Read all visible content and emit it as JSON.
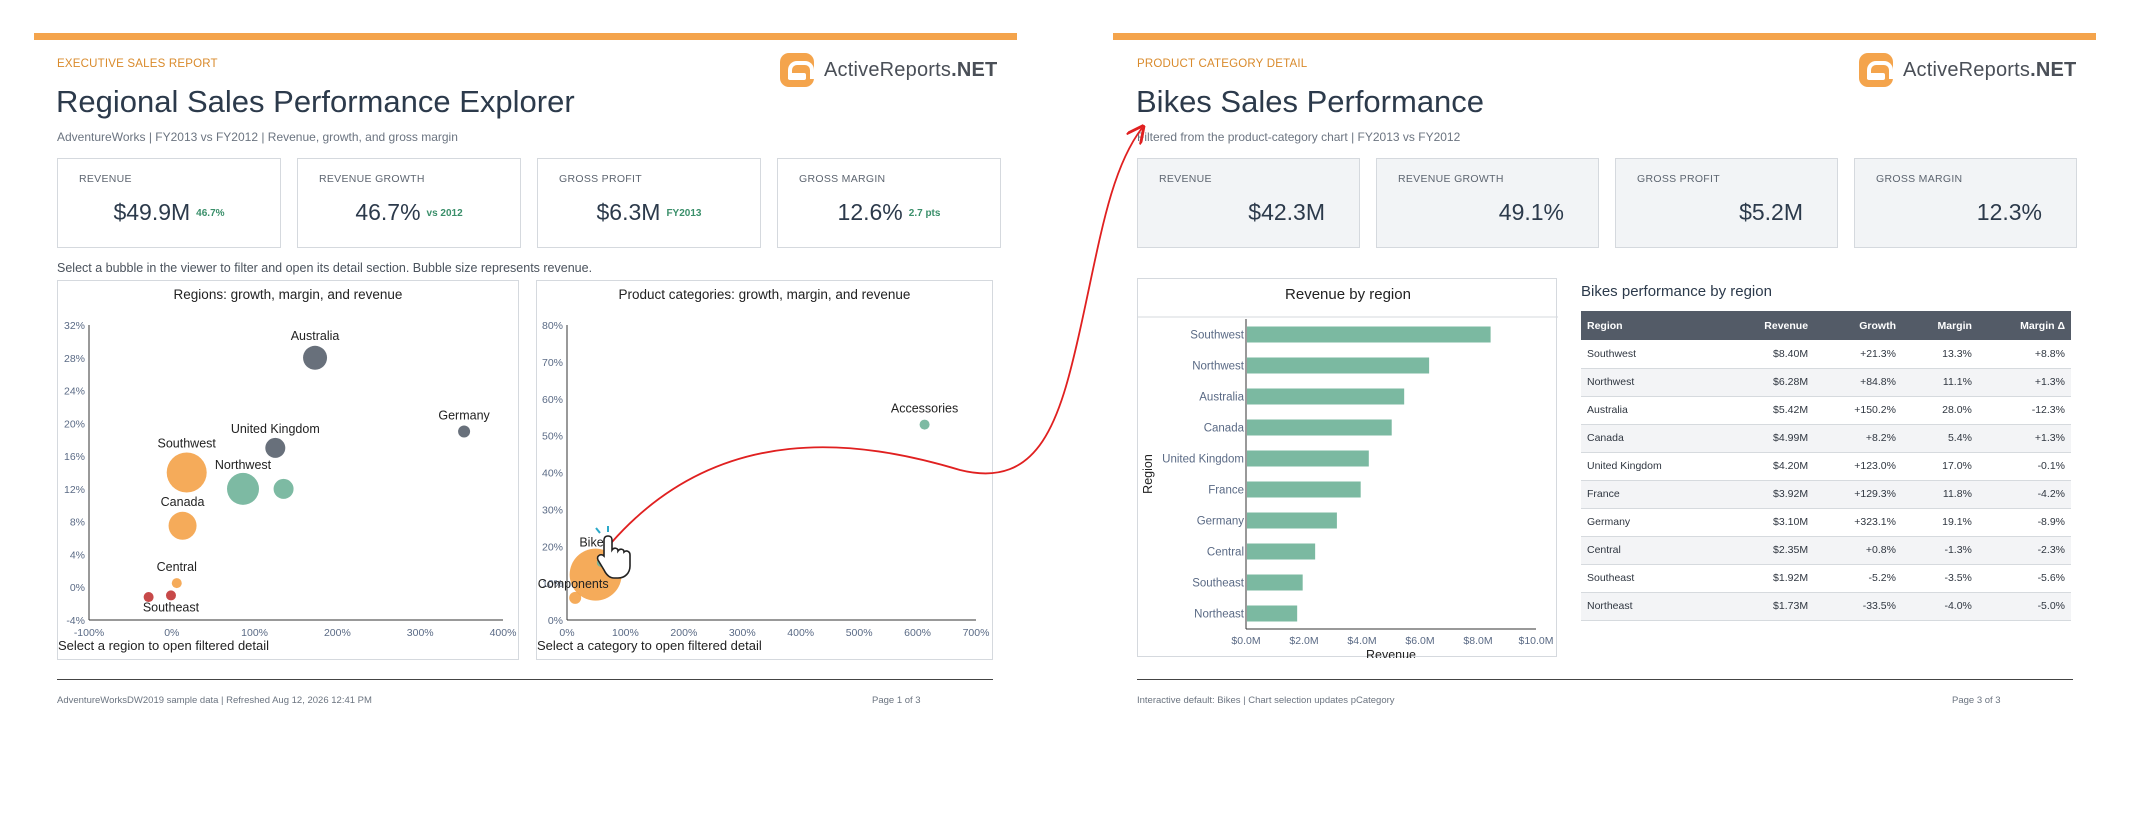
{
  "page1": {
    "kicker": "EXECUTIVE SALES REPORT",
    "title": "Regional Sales Performance Explorer",
    "subtitle": "AdventureWorks | FY2013 vs FY2012 | Revenue, growth, and gross margin",
    "logo": {
      "brand": "ActiveReports",
      "suffix": ".NET",
      "color": "#f4a44c"
    },
    "kpis": [
      {
        "label": "REVENUE",
        "value": "$49.9M",
        "delta": "46.7%"
      },
      {
        "label": "REVENUE GROWTH",
        "value": "46.7%",
        "delta": "vs 2012"
      },
      {
        "label": "GROSS PROFIT",
        "value": "$6.3M",
        "delta": "FY2013"
      },
      {
        "label": "GROSS MARGIN",
        "value": "12.6%",
        "delta": "2.7 pts"
      }
    ],
    "hint": "Select a bubble in the viewer to filter and open its detail section. Bubble size represents revenue.",
    "footer_left": "AdventureWorksDW2019 sample data | Refreshed Aug 12, 2026 12:41 PM",
    "footer_right": "Page 1 of 3"
  },
  "page3": {
    "kicker": "PRODUCT CATEGORY DETAIL",
    "title": "Bikes Sales Performance",
    "subtitle": "Filtered from the product-category chart | FY2013 vs FY2012",
    "kpis": [
      {
        "label": "REVENUE",
        "value": "$42.3M"
      },
      {
        "label": "REVENUE GROWTH",
        "value": "49.1%"
      },
      {
        "label": "GROSS PROFIT",
        "value": "$5.2M"
      },
      {
        "label": "GROSS MARGIN",
        "value": "12.3%"
      }
    ],
    "table": {
      "title": "Bikes performance by region",
      "columns": [
        "Region",
        "Revenue",
        "Growth",
        "Margin",
        "Margin Δ"
      ],
      "rows": [
        [
          "Southwest",
          "$8.40M",
          "+21.3%",
          "13.3%",
          "+8.8%"
        ],
        [
          "Northwest",
          "$6.28M",
          "+84.8%",
          "11.1%",
          "+1.3%"
        ],
        [
          "Australia",
          "$5.42M",
          "+150.2%",
          "28.0%",
          "-12.3%"
        ],
        [
          "Canada",
          "$4.99M",
          "+8.2%",
          "5.4%",
          "+1.3%"
        ],
        [
          "United Kingdom",
          "$4.20M",
          "+123.0%",
          "17.0%",
          "-0.1%"
        ],
        [
          "France",
          "$3.92M",
          "+129.3%",
          "11.8%",
          "-4.2%"
        ],
        [
          "Germany",
          "$3.10M",
          "+323.1%",
          "19.1%",
          "-8.9%"
        ],
        [
          "Central",
          "$2.35M",
          "+0.8%",
          "-1.3%",
          "-2.3%"
        ],
        [
          "Southeast",
          "$1.92M",
          "-5.2%",
          "-3.5%",
          "-5.6%"
        ],
        [
          "Northeast",
          "$1.73M",
          "-33.5%",
          "-4.0%",
          "-5.0%"
        ]
      ]
    },
    "footer_left": "Interactive default: Bikes | Chart selection updates pCategory",
    "footer_right": "Page 3 of 3"
  },
  "chart_data": [
    {
      "type": "scatter",
      "title": "Regions: growth, margin, and revenue",
      "caption": "Select a region to open filtered detail",
      "xlim": [
        -100,
        400
      ],
      "ylim": [
        -4,
        32
      ],
      "xticks": [
        "-100%",
        "0%",
        "100%",
        "200%",
        "300%",
        "400%"
      ],
      "yticks": [
        "-4%",
        "0%",
        "4%",
        "8%",
        "12%",
        "16%",
        "20%",
        "24%",
        "28%",
        "32%"
      ],
      "points": [
        {
          "label": "Australia",
          "x": 173,
          "y": 28,
          "size": 6,
          "color": "#5b6470"
        },
        {
          "label": "Germany",
          "x": 353,
          "y": 19,
          "size": 3,
          "color": "#5b6470"
        },
        {
          "label": "United Kingdom",
          "x": 125,
          "y": 17,
          "size": 5,
          "color": "#5b6470"
        },
        {
          "label": "Southwest",
          "x": 18,
          "y": 14,
          "size": 10,
          "color": "#f4a44c"
        },
        {
          "label": "Northwest",
          "x": 86,
          "y": 12,
          "size": 8,
          "color": "#72b49b"
        },
        {
          "label": "",
          "x": 135,
          "y": 12,
          "size": 5,
          "color": "#72b49b"
        },
        {
          "label": "Canada",
          "x": 13,
          "y": 7.5,
          "size": 7,
          "color": "#f4a44c"
        },
        {
          "label": "Central",
          "x": 6,
          "y": 0.5,
          "size": 2.5,
          "color": "#f4a44c"
        },
        {
          "label": "Southeast",
          "x": -1,
          "y": -1,
          "size": 2.5,
          "color": "#c23a3a"
        },
        {
          "label": "",
          "x": -28,
          "y": -1.2,
          "size": 2.5,
          "color": "#c23a3a"
        }
      ]
    },
    {
      "type": "scatter",
      "title": "Product categories: growth, margin, and revenue",
      "caption": "Select a category to open filtered detail",
      "xlim": [
        0,
        700
      ],
      "ylim": [
        0,
        80
      ],
      "xticks": [
        "0%",
        "100%",
        "200%",
        "300%",
        "400%",
        "500%",
        "600%",
        "700%"
      ],
      "yticks": [
        "0%",
        "10%",
        "20%",
        "30%",
        "40%",
        "50%",
        "60%",
        "70%",
        "80%"
      ],
      "points": [
        {
          "label": "Accessories",
          "x": 612,
          "y": 53,
          "size": 2.5,
          "color": "#72b49b"
        },
        {
          "label": "Bikes",
          "x": 49,
          "y": 12.3,
          "size": 13,
          "color": "#f4a44c"
        },
        {
          "label": "Components",
          "x": 14,
          "y": 6,
          "size": 3,
          "color": "#f4a44c"
        },
        {
          "label": "",
          "x": 58,
          "y": 15.5,
          "size": 2,
          "color": "#72b49b"
        }
      ]
    },
    {
      "type": "bar",
      "orientation": "horizontal",
      "title": "Revenue by region",
      "xlabel": "Revenue",
      "ylabel": "Region",
      "xlim": [
        0,
        10
      ],
      "xticks": [
        "$0.0M",
        "$2.0M",
        "$4.0M",
        "$6.0M",
        "$8.0M",
        "$10.0M"
      ],
      "categories": [
        "Southwest",
        "Northwest",
        "Australia",
        "Canada",
        "United Kingdom",
        "France",
        "Germany",
        "Central",
        "Southeast",
        "Northeast"
      ],
      "values": [
        8.4,
        6.28,
        5.42,
        4.99,
        4.2,
        3.92,
        3.1,
        2.35,
        1.92,
        1.73
      ],
      "color": "#7bb9a1"
    }
  ]
}
